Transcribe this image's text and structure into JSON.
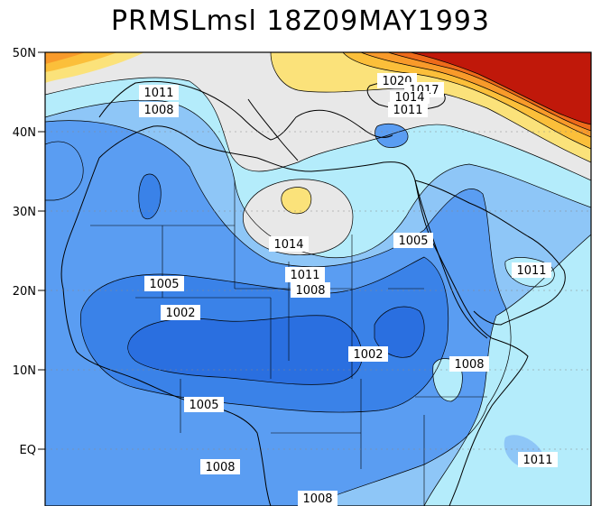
{
  "title": "PRMSLmsl 18Z09MAY1993",
  "lat_ticks": [
    "50N",
    "40N",
    "30N",
    "20N",
    "10N",
    "EQ"
  ],
  "fill_colors": {
    "below_1002": "#2a6fe0",
    "1002_1005": "#3a82e8",
    "1005_1008": "#5a9df2",
    "1008_1011": "#8ec6f7",
    "1011_1014": "#b4ecfb",
    "1014_1017": "#e8e8e8",
    "1017_1020": "#fbe27a",
    "1020_1023": "#fbbf3a",
    "1023_1026": "#f89a2a",
    "1026_1029": "#ee6a1a",
    "above_1029": "#c0180a"
  },
  "contour_labels": [
    {
      "id": "l1011nw",
      "text": "1011"
    },
    {
      "id": "l1008nw",
      "text": "1008"
    },
    {
      "id": "l1020",
      "text": "1020"
    },
    {
      "id": "l1017",
      "text": "1017"
    },
    {
      "id": "l1014ne",
      "text": "1014"
    },
    {
      "id": "l1011ne",
      "text": "1011"
    },
    {
      "id": "l1014c",
      "text": "1014"
    },
    {
      "id": "l1005e",
      "text": "1005"
    },
    {
      "id": "l1011arab",
      "text": "1011"
    },
    {
      "id": "l1005w",
      "text": "1005"
    },
    {
      "id": "l1011c",
      "text": "1011"
    },
    {
      "id": "l1008c",
      "text": "1008"
    },
    {
      "id": "l1002w",
      "text": "1002"
    },
    {
      "id": "l1002e",
      "text": "1002"
    },
    {
      "id": "l1008horn",
      "text": "1008"
    },
    {
      "id": "l1005s",
      "text": "1005"
    },
    {
      "id": "l1008sw",
      "text": "1008"
    },
    {
      "id": "l1011se",
      "text": "1011"
    },
    {
      "id": "l1008s",
      "text": "1008"
    }
  ]
}
